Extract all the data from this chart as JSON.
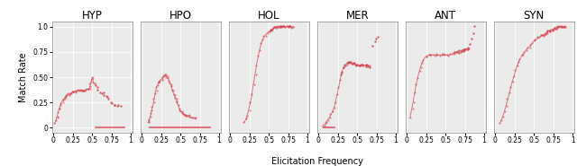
{
  "titles": [
    "HYP",
    "HPO",
    "HOL",
    "MER",
    "ANT",
    "SYN"
  ],
  "xlabel": "Elicitation Frequency",
  "ylabel": "Match Rate",
  "xlim": [
    -0.02,
    1.02
  ],
  "ylim": [
    -0.05,
    1.05
  ],
  "xticks": [
    0,
    0.25,
    0.5,
    0.75,
    1
  ],
  "xtick_labels": [
    "0",
    "0.25",
    "0.5",
    "0.75",
    "1"
  ],
  "yticks": [
    0,
    0.25,
    0.5,
    0.75,
    1.0
  ],
  "ytick_labels": [
    "0",
    "0.25",
    "0.50",
    "0.75",
    "1.0"
  ],
  "line_color": "#d9404f",
  "background": "#ebebeb",
  "title_fontsize": 8.5,
  "label_fontsize": 7,
  "tick_fontsize": 5.5,
  "series": {
    "HYP": {
      "main_x": [
        0.02,
        0.03,
        0.04,
        0.05,
        0.06,
        0.07,
        0.08,
        0.09,
        0.1,
        0.11,
        0.12,
        0.13,
        0.14,
        0.15,
        0.16,
        0.17,
        0.18,
        0.19,
        0.2,
        0.21,
        0.22,
        0.23,
        0.24,
        0.25,
        0.26,
        0.27,
        0.28,
        0.29,
        0.3,
        0.31,
        0.32,
        0.33,
        0.34,
        0.35,
        0.36,
        0.37,
        0.38,
        0.39,
        0.4,
        0.41,
        0.42,
        0.43,
        0.44,
        0.45,
        0.46,
        0.47,
        0.48,
        0.49,
        0.5,
        0.51,
        0.52
      ],
      "main_y": [
        0.04,
        0.07,
        0.1,
        0.12,
        0.15,
        0.18,
        0.2,
        0.22,
        0.24,
        0.26,
        0.27,
        0.28,
        0.29,
        0.3,
        0.31,
        0.32,
        0.32,
        0.33,
        0.33,
        0.34,
        0.34,
        0.34,
        0.35,
        0.35,
        0.35,
        0.36,
        0.36,
        0.36,
        0.36,
        0.37,
        0.37,
        0.37,
        0.37,
        0.37,
        0.37,
        0.37,
        0.37,
        0.37,
        0.37,
        0.37,
        0.38,
        0.38,
        0.38,
        0.38,
        0.38,
        0.4,
        0.43,
        0.46,
        0.5,
        0.48,
        0.45
      ],
      "scatter_x": [
        0.52,
        0.54,
        0.56,
        0.58,
        0.6,
        0.62,
        0.64,
        0.66,
        0.68,
        0.7,
        0.72,
        0.74,
        0.76,
        0.78,
        0.8,
        0.82,
        0.84,
        0.86
      ],
      "scatter_y": [
        0.44,
        0.42,
        0.4,
        0.38,
        0.36,
        0.34,
        0.34,
        0.33,
        0.32,
        0.3,
        0.28,
        0.26,
        0.24,
        0.23,
        0.22,
        0.22,
        0.22,
        0.22
      ],
      "baseline_x": [
        0.55,
        0.92
      ],
      "baseline_y": [
        0.0,
        0.0
      ]
    },
    "HPO": {
      "main_x": [
        0.08,
        0.09,
        0.1,
        0.11,
        0.12,
        0.13,
        0.14,
        0.15,
        0.16,
        0.17,
        0.18,
        0.19,
        0.2,
        0.21,
        0.22,
        0.23,
        0.24,
        0.25,
        0.26,
        0.27,
        0.28,
        0.29,
        0.3,
        0.31,
        0.32,
        0.33,
        0.34,
        0.35,
        0.36,
        0.37,
        0.38,
        0.39,
        0.4,
        0.41,
        0.42,
        0.43,
        0.44,
        0.45,
        0.46,
        0.47,
        0.48,
        0.49,
        0.5,
        0.51,
        0.52,
        0.53,
        0.54,
        0.55,
        0.56,
        0.57,
        0.58,
        0.59,
        0.6,
        0.62,
        0.64,
        0.66,
        0.68,
        0.7
      ],
      "main_y": [
        0.05,
        0.07,
        0.09,
        0.12,
        0.15,
        0.18,
        0.21,
        0.25,
        0.29,
        0.33,
        0.37,
        0.4,
        0.42,
        0.44,
        0.45,
        0.46,
        0.47,
        0.48,
        0.49,
        0.5,
        0.51,
        0.52,
        0.53,
        0.52,
        0.51,
        0.5,
        0.49,
        0.47,
        0.45,
        0.43,
        0.41,
        0.38,
        0.36,
        0.34,
        0.32,
        0.3,
        0.28,
        0.26,
        0.24,
        0.22,
        0.2,
        0.18,
        0.17,
        0.16,
        0.15,
        0.14,
        0.13,
        0.13,
        0.13,
        0.12,
        0.12,
        0.12,
        0.12,
        0.11,
        0.1,
        0.1,
        0.1,
        0.1
      ],
      "scatter_x": [],
      "scatter_y": [],
      "baseline_x": [
        0.1,
        0.88
      ],
      "baseline_y": [
        0.0,
        0.0
      ]
    },
    "HOL": {
      "main_x": [
        0.18,
        0.2,
        0.22,
        0.24,
        0.26,
        0.28,
        0.3,
        0.32,
        0.34,
        0.36,
        0.38,
        0.4,
        0.42,
        0.44,
        0.46,
        0.48,
        0.5,
        0.52,
        0.54,
        0.56,
        0.58,
        0.6,
        0.62,
        0.64,
        0.66,
        0.68,
        0.7,
        0.72,
        0.74,
        0.76,
        0.78,
        0.8
      ],
      "main_y": [
        0.05,
        0.08,
        0.12,
        0.18,
        0.25,
        0.33,
        0.43,
        0.52,
        0.62,
        0.7,
        0.77,
        0.83,
        0.87,
        0.9,
        0.92,
        0.94,
        0.95,
        0.96,
        0.97,
        0.98,
        1.0,
        1.0,
        1.0,
        1.0,
        1.0,
        1.0,
        1.0,
        1.0,
        1.0,
        1.0,
        1.0,
        1.0
      ],
      "scatter_x": [
        0.52,
        0.54,
        0.56,
        0.58,
        0.6,
        0.62,
        0.64,
        0.66,
        0.68,
        0.7,
        0.72,
        0.74,
        0.76,
        0.78,
        0.8
      ],
      "scatter_y": [
        0.96,
        0.97,
        0.98,
        1.0,
        1.0,
        1.0,
        1.0,
        1.0,
        1.0,
        1.0,
        1.0,
        1.0,
        1.0,
        1.0,
        1.0
      ],
      "baseline_x": [],
      "baseline_y": []
    },
    "MER": {
      "main_x": [
        0.05,
        0.07,
        0.09,
        0.1,
        0.12,
        0.14,
        0.16,
        0.18,
        0.2,
        0.22,
        0.24,
        0.26,
        0.28,
        0.3,
        0.32,
        0.34,
        0.36,
        0.38,
        0.4,
        0.42,
        0.44,
        0.46,
        0.48,
        0.5,
        0.52,
        0.54,
        0.56,
        0.58,
        0.6,
        0.62,
        0.64,
        0.66
      ],
      "main_y": [
        0.02,
        0.03,
        0.04,
        0.06,
        0.08,
        0.1,
        0.13,
        0.16,
        0.2,
        0.26,
        0.33,
        0.4,
        0.48,
        0.55,
        0.59,
        0.62,
        0.63,
        0.64,
        0.64,
        0.64,
        0.64,
        0.63,
        0.62,
        0.62,
        0.62,
        0.62,
        0.62,
        0.62,
        0.62,
        0.62,
        0.62,
        0.61
      ],
      "scatter_x": [
        0.28,
        0.3,
        0.32,
        0.34,
        0.36,
        0.38,
        0.4,
        0.42,
        0.44,
        0.46,
        0.48,
        0.5,
        0.52,
        0.54,
        0.56,
        0.58,
        0.6,
        0.62,
        0.64,
        0.66,
        0.7,
        0.72,
        0.74,
        0.76
      ],
      "scatter_y": [
        0.52,
        0.56,
        0.6,
        0.62,
        0.63,
        0.64,
        0.64,
        0.64,
        0.64,
        0.63,
        0.62,
        0.62,
        0.62,
        0.62,
        0.62,
        0.62,
        0.62,
        0.61,
        0.6,
        0.6,
        0.82,
        0.85,
        0.88,
        0.9
      ],
      "baseline_x": [
        0.06,
        0.2
      ],
      "baseline_y": [
        0.0,
        0.0
      ]
    },
    "ANT": {
      "main_x": [
        0.04,
        0.06,
        0.08,
        0.1,
        0.12,
        0.14,
        0.16,
        0.18,
        0.2,
        0.22,
        0.24,
        0.26,
        0.28,
        0.3,
        0.32,
        0.34,
        0.36,
        0.38,
        0.4,
        0.42,
        0.44,
        0.46,
        0.48,
        0.5,
        0.52,
        0.54,
        0.56,
        0.58,
        0.6,
        0.62,
        0.64,
        0.66,
        0.68,
        0.7,
        0.72,
        0.74,
        0.76,
        0.78,
        0.8
      ],
      "main_y": [
        0.1,
        0.18,
        0.26,
        0.35,
        0.43,
        0.5,
        0.56,
        0.61,
        0.65,
        0.68,
        0.7,
        0.71,
        0.72,
        0.72,
        0.72,
        0.72,
        0.72,
        0.72,
        0.72,
        0.72,
        0.72,
        0.72,
        0.72,
        0.72,
        0.72,
        0.72,
        0.72,
        0.73,
        0.74,
        0.74,
        0.75,
        0.75,
        0.75,
        0.76,
        0.77,
        0.77,
        0.78,
        0.78,
        0.78
      ],
      "scatter_x": [
        0.62,
        0.64,
        0.66,
        0.68,
        0.7,
        0.72,
        0.74,
        0.76,
        0.78,
        0.8,
        0.82,
        0.84,
        0.86,
        0.88
      ],
      "scatter_y": [
        0.74,
        0.75,
        0.75,
        0.76,
        0.77,
        0.77,
        0.78,
        0.78,
        0.78,
        0.8,
        0.84,
        0.88,
        0.94,
        1.0
      ],
      "baseline_x": [],
      "baseline_y": []
    },
    "SYN": {
      "main_x": [
        0.06,
        0.08,
        0.1,
        0.12,
        0.14,
        0.16,
        0.18,
        0.2,
        0.22,
        0.24,
        0.26,
        0.28,
        0.3,
        0.32,
        0.34,
        0.36,
        0.38,
        0.4,
        0.42,
        0.44,
        0.46,
        0.48,
        0.5,
        0.52,
        0.54,
        0.56,
        0.58,
        0.6,
        0.62,
        0.64,
        0.66,
        0.68,
        0.7,
        0.72,
        0.74,
        0.76,
        0.78,
        0.8,
        0.82,
        0.84,
        0.86,
        0.88,
        0.9
      ],
      "main_y": [
        0.05,
        0.08,
        0.12,
        0.17,
        0.22,
        0.28,
        0.34,
        0.4,
        0.46,
        0.51,
        0.56,
        0.61,
        0.65,
        0.68,
        0.71,
        0.73,
        0.75,
        0.77,
        0.79,
        0.8,
        0.82,
        0.84,
        0.86,
        0.87,
        0.88,
        0.89,
        0.9,
        0.91,
        0.92,
        0.93,
        0.94,
        0.95,
        0.96,
        0.97,
        0.97,
        0.98,
        0.99,
        1.0,
        1.0,
        1.0,
        1.0,
        1.0,
        1.0
      ],
      "scatter_x": [
        0.6,
        0.62,
        0.64,
        0.66,
        0.68,
        0.7,
        0.72,
        0.74,
        0.76,
        0.78,
        0.8,
        0.82,
        0.84,
        0.86,
        0.88,
        0.9
      ],
      "scatter_y": [
        0.91,
        0.92,
        0.93,
        0.94,
        0.95,
        0.96,
        0.97,
        0.97,
        0.98,
        0.99,
        1.0,
        1.0,
        1.0,
        1.0,
        1.0,
        1.0
      ],
      "baseline_x": [],
      "baseline_y": []
    }
  }
}
